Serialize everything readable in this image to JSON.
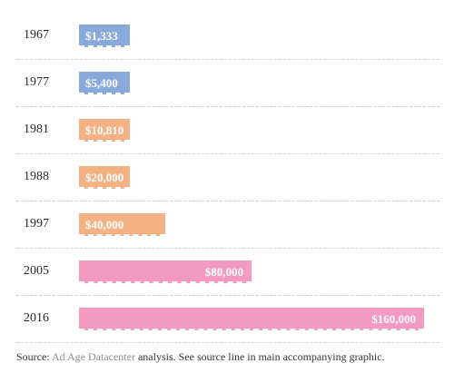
{
  "chart_data": {
    "type": "bar",
    "orientation": "horizontal",
    "categories": [
      "1967",
      "1977",
      "1981",
      "1988",
      "1997",
      "2005",
      "2016"
    ],
    "values": [
      1333,
      5400,
      10810,
      20000,
      40000,
      80000,
      160000
    ],
    "value_labels": [
      "$1,333",
      "$5,400",
      "$10,810",
      "$20,000",
      "$40,000",
      "$80,000",
      "$160,000"
    ],
    "bar_colors": [
      "#8aa9db",
      "#8aa9db",
      "#f4b183",
      "#f4b183",
      "#f4b183",
      "#f49ac1",
      "#f49ac1"
    ],
    "xlim": [
      0,
      160000
    ],
    "grid": false,
    "title": "",
    "xlabel": "",
    "ylabel": ""
  },
  "source": {
    "prefix": "Source: ",
    "link_text": "Ad Age Datacenter",
    "suffix": " analysis. See source line in main accompanying graphic."
  },
  "colors": {
    "blue": "#8aa9db",
    "orange": "#f4b183",
    "pink": "#f49ac1",
    "divider": "#cfcfcf"
  }
}
